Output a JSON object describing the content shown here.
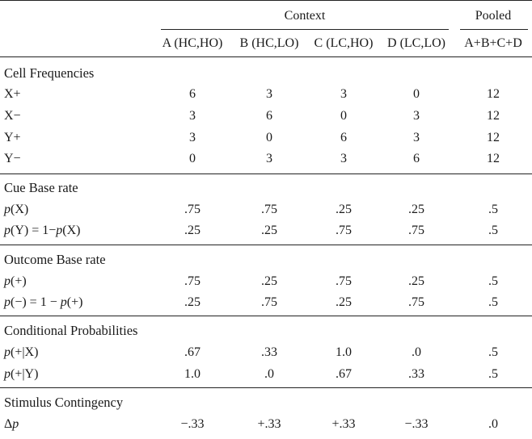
{
  "header": {
    "context_label": "Context",
    "pooled_label": "Pooled",
    "columns": [
      "A (HC,HO)",
      "B (HC,LO)",
      "C (LC,HO)",
      "D (LC,LO)",
      "A+B+C+D"
    ]
  },
  "sections": [
    {
      "title": "Cell Frequencies",
      "rows": [
        {
          "label": "X+",
          "values": [
            "6",
            "3",
            "3",
            "0",
            "12"
          ]
        },
        {
          "label": "X−",
          "values": [
            "3",
            "6",
            "0",
            "3",
            "12"
          ]
        },
        {
          "label": "Y+",
          "values": [
            "3",
            "0",
            "6",
            "3",
            "12"
          ]
        },
        {
          "label": "Y−",
          "values": [
            "0",
            "3",
            "3",
            "6",
            "12"
          ]
        }
      ]
    },
    {
      "title": "Cue Base rate",
      "rows": [
        {
          "label": "p(X)",
          "values": [
            ".75",
            ".75",
            ".25",
            ".25",
            ".5"
          ]
        },
        {
          "label": "p(Y) = 1−p(X)",
          "values": [
            ".25",
            ".25",
            ".75",
            ".75",
            ".5"
          ]
        }
      ]
    },
    {
      "title": "Outcome Base rate",
      "rows": [
        {
          "label": "p(+)",
          "values": [
            ".75",
            ".25",
            ".75",
            ".25",
            ".5"
          ]
        },
        {
          "label": "p(−) = 1 − p(+)",
          "values": [
            ".25",
            ".75",
            ".25",
            ".75",
            ".5"
          ]
        }
      ]
    },
    {
      "title": "Conditional Probabilities",
      "rows": [
        {
          "label": "p(+|X)",
          "values": [
            ".67",
            ".33",
            "1.0",
            ".0",
            ".5"
          ]
        },
        {
          "label": "p(+|Y)",
          "values": [
            "1.0",
            ".0",
            ".67",
            ".33",
            ".5"
          ]
        }
      ]
    },
    {
      "title": "Stimulus Contingency",
      "rows": [
        {
          "label": "Δp",
          "values": [
            "−.33",
            "+.33",
            "+.33",
            "−.33",
            ".0"
          ]
        }
      ]
    }
  ]
}
